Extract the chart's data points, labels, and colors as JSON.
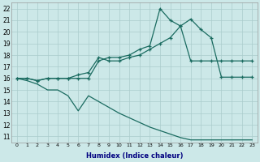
{
  "xlabel": "Humidex (Indice chaleur)",
  "bg_color": "#cce8e8",
  "grid_color": "#aacccc",
  "line_color": "#1a6b60",
  "xlim": [
    -0.5,
    23.5
  ],
  "ylim": [
    10.5,
    22.5
  ],
  "xticks": [
    0,
    1,
    2,
    3,
    4,
    5,
    6,
    7,
    8,
    9,
    10,
    11,
    12,
    13,
    14,
    15,
    16,
    17,
    18,
    19,
    20,
    21,
    22,
    23
  ],
  "yticks": [
    11,
    12,
    13,
    14,
    15,
    16,
    17,
    18,
    19,
    20,
    21,
    22
  ],
  "series": [
    {
      "x": [
        0,
        1,
        2,
        3,
        4,
        5,
        6,
        7,
        8,
        9,
        10,
        11,
        12,
        13,
        14,
        15,
        16,
        17,
        18,
        19,
        20,
        21,
        22,
        23
      ],
      "y": [
        16,
        16,
        15.8,
        16,
        16,
        16,
        16,
        16,
        17.5,
        17.8,
        17.8,
        18.0,
        18.5,
        18.8,
        22.0,
        21.0,
        20.5,
        17.5,
        17.5,
        17.5,
        17.5,
        17.5,
        17.5,
        17.5
      ]
    },
    {
      "x": [
        0,
        1,
        2,
        3,
        4,
        5,
        6,
        7,
        8,
        9,
        10,
        11,
        12,
        13,
        14,
        15,
        16,
        17,
        18,
        19,
        20,
        21,
        22,
        23
      ],
      "y": [
        16,
        16,
        15.8,
        16,
        16,
        16,
        16.3,
        16.5,
        17.8,
        17.5,
        17.5,
        17.8,
        18.0,
        18.5,
        19.0,
        19.5,
        20.5,
        21.1,
        20.2,
        19.5,
        16.1,
        16.1,
        16.1,
        16.1
      ]
    },
    {
      "x": [
        0,
        1,
        2,
        3,
        4,
        5,
        6,
        7,
        8,
        9,
        10,
        11,
        12,
        13,
        14,
        15,
        16,
        17,
        18,
        19,
        20,
        21,
        22,
        23
      ],
      "y": [
        16,
        15.8,
        15.5,
        15.0,
        15.0,
        14.5,
        13.2,
        14.5,
        14.0,
        13.5,
        13.0,
        12.6,
        12.2,
        11.8,
        11.5,
        11.2,
        10.9,
        10.7,
        10.7,
        10.7,
        10.7,
        10.7,
        10.7,
        10.7
      ]
    }
  ]
}
